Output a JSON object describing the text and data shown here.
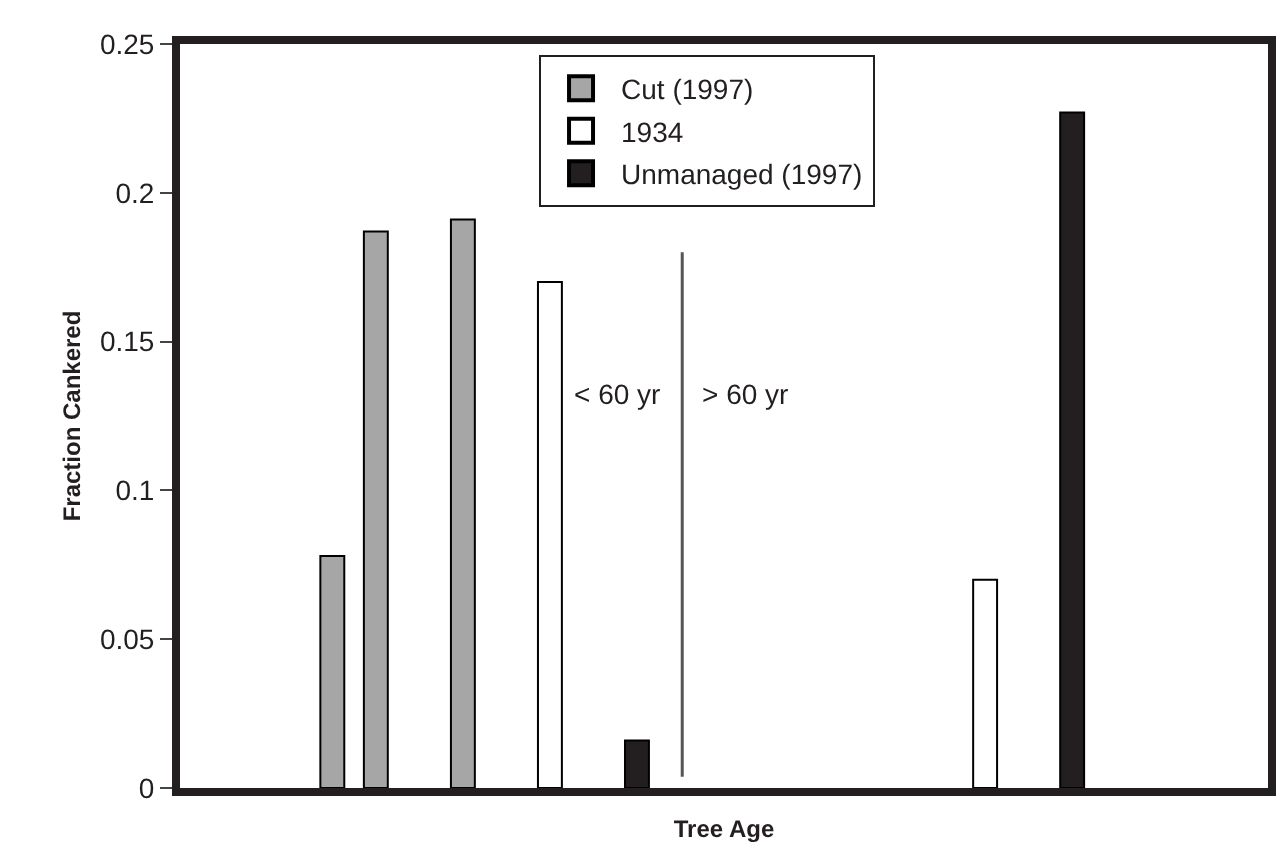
{
  "chart_data": {
    "type": "bar",
    "xlabel": "Tree Age",
    "ylabel": "Fraction Cankered",
    "categories": [
      null,
      null,
      null,
      null,
      null,
      null,
      null,
      null,
      null,
      null,
      null,
      null,
      null,
      null,
      null,
      null,
      null,
      null,
      null,
      null,
      null,
      null,
      null,
      null,
      null
    ],
    "series": [
      {
        "name": "Cut (1997)",
        "color": "#a6a6a6",
        "values": [
          null,
          null,
          null,
          0.078,
          0.187,
          null,
          0.191,
          null,
          null,
          null,
          null,
          null,
          null,
          null,
          null,
          null,
          null,
          null,
          null,
          null,
          null,
          null,
          null,
          null,
          null
        ]
      },
      {
        "name": "1934",
        "color": "#ffffff",
        "values": [
          null,
          null,
          null,
          null,
          null,
          null,
          null,
          null,
          0.17,
          null,
          null,
          null,
          null,
          null,
          null,
          null,
          null,
          null,
          0.07,
          null,
          null,
          null,
          null,
          null,
          null
        ]
      },
      {
        "name": "Unmanaged (1997)",
        "color": "#231f20",
        "values": [
          null,
          null,
          null,
          null,
          null,
          null,
          null,
          null,
          null,
          null,
          0.016,
          null,
          null,
          null,
          null,
          null,
          null,
          null,
          null,
          null,
          0.227,
          null,
          null,
          null,
          null
        ]
      }
    ],
    "ylim": [
      0,
      0.25
    ],
    "yticks": [
      0,
      0.05,
      0.1,
      0.15,
      0.2,
      0.25
    ],
    "annotations": [
      "< 60 yr",
      "> 60 yr"
    ],
    "legend": "top",
    "tick_labels": "y"
  }
}
